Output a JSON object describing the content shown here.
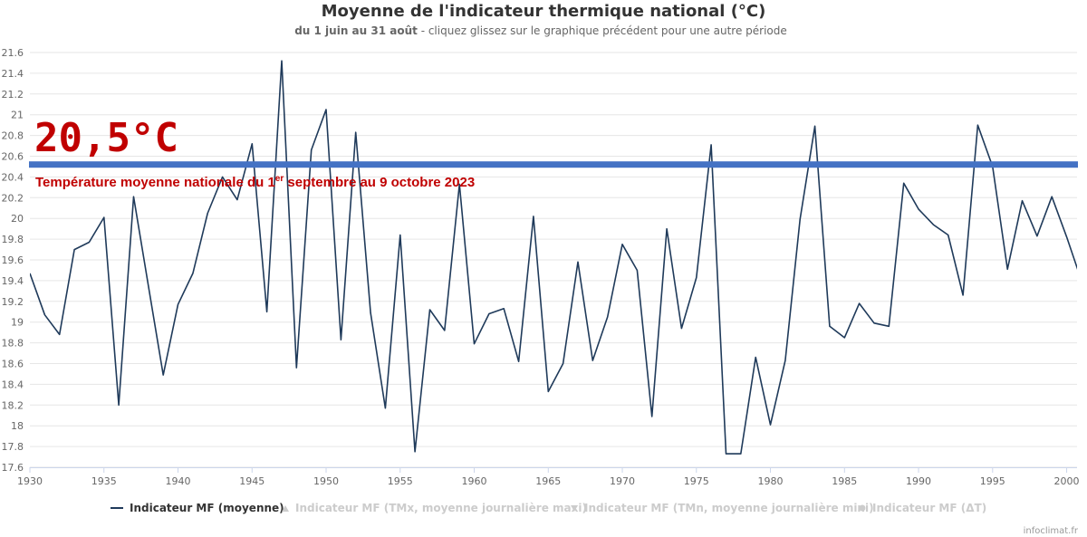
{
  "title": "Moyenne de l'indicateur thermique national (°C)",
  "subtitle": {
    "bold": "du 1 juin au 31 août",
    "rest": " - cliquez glissez sur le graphique précédent pour une autre période"
  },
  "annotation": {
    "value_label": "20,5°C",
    "value": 20.52,
    "caption_before": "Température moyenne nationale du 1",
    "caption_sup": "er",
    "caption_after": " septembre au 9 octobre 2023",
    "color": "#c00000",
    "line_color": "#4472c4"
  },
  "legend": [
    {
      "label": "Indicateur MF (moyenne)",
      "active": true,
      "symbol": "line"
    },
    {
      "label": "Indicateur MF (TMx, moyenne journalière maxi)",
      "active": false,
      "symbol": "triangle-up"
    },
    {
      "label": "Indicateur MF (TMn, moyenne journalière mini)",
      "active": false,
      "symbol": "triangle-down"
    },
    {
      "label": "Indicateur MF (ΔT)",
      "active": false,
      "symbol": "circle"
    }
  ],
  "credit": "infoclimat.fr",
  "chart_data": {
    "type": "line",
    "title": "Moyenne de l'indicateur thermique national (°C)",
    "xlim": [
      1930,
      2000.7
    ],
    "ylim": [
      17.6,
      21.6
    ],
    "x_ticks": [
      1930,
      1935,
      1940,
      1945,
      1950,
      1955,
      1960,
      1965,
      1970,
      1975,
      1980,
      1985,
      1990,
      1995,
      2000
    ],
    "y_ticks": [
      17.6,
      17.8,
      18,
      18.2,
      18.4,
      18.6,
      18.8,
      19,
      19.2,
      19.4,
      19.6,
      19.8,
      20,
      20.2,
      20.4,
      20.6,
      20.8,
      21,
      21.2,
      21.4,
      21.6
    ],
    "grid": true,
    "series": [
      {
        "name": "Indicateur MF (moyenne)",
        "color": "#1f3a5a",
        "x": [
          1930,
          1931,
          1932,
          1933,
          1934,
          1935,
          1936,
          1937,
          1938,
          1939,
          1940,
          1941,
          1942,
          1943,
          1944,
          1945,
          1946,
          1947,
          1948,
          1949,
          1950,
          1951,
          1952,
          1953,
          1954,
          1955,
          1956,
          1957,
          1958,
          1959,
          1960,
          1961,
          1962,
          1963,
          1964,
          1965,
          1966,
          1967,
          1968,
          1969,
          1970,
          1971,
          1972,
          1973,
          1974,
          1975,
          1976,
          1977,
          1978,
          1979,
          1980,
          1981,
          1982,
          1983,
          1984,
          1985,
          1986,
          1987,
          1988,
          1989,
          1990,
          1991,
          1992,
          1993,
          1994,
          1995,
          1996,
          1997,
          1998,
          1999,
          2000,
          2001
        ],
        "y": [
          19.47,
          19.07,
          18.88,
          19.7,
          19.77,
          20.01,
          18.2,
          20.21,
          19.35,
          18.49,
          19.17,
          19.47,
          20.05,
          20.4,
          20.18,
          20.72,
          19.1,
          21.52,
          18.56,
          20.66,
          21.05,
          18.83,
          20.83,
          19.09,
          18.17,
          19.84,
          17.75,
          19.12,
          18.92,
          20.33,
          18.79,
          19.08,
          19.13,
          18.62,
          20.02,
          18.33,
          18.6,
          19.58,
          18.63,
          19.05,
          19.75,
          19.5,
          18.09,
          19.9,
          18.94,
          19.43,
          20.71,
          17.73,
          17.73,
          18.66,
          18.01,
          18.63,
          19.99,
          20.89,
          18.96,
          18.85,
          19.18,
          18.99,
          18.96,
          20.34,
          20.09,
          19.94,
          19.84,
          19.26,
          20.9,
          20.5,
          19.51,
          20.17,
          19.83,
          20.21,
          19.82,
          19.4
        ]
      }
    ]
  }
}
